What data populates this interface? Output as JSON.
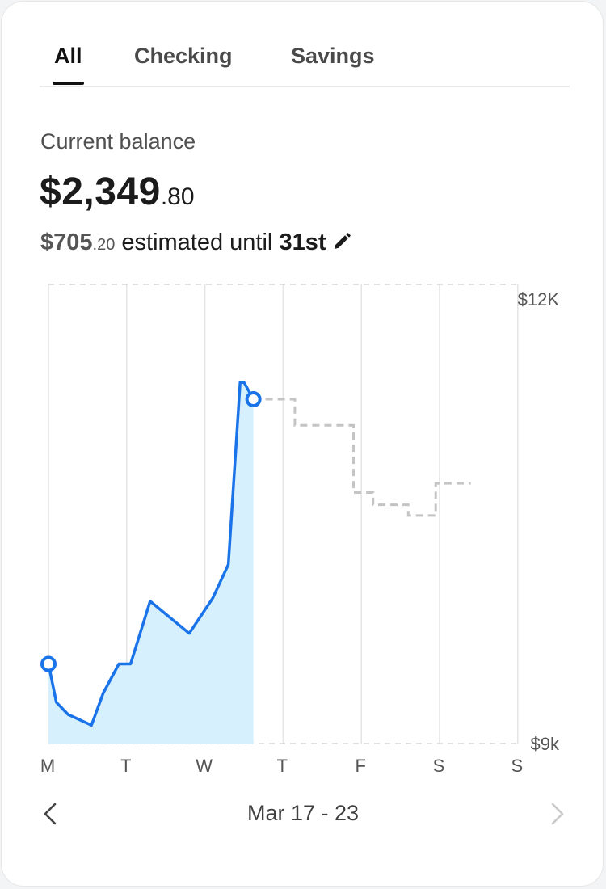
{
  "tabs": [
    {
      "label": "All",
      "active": true
    },
    {
      "label": "Checking",
      "active": false
    },
    {
      "label": "Savings",
      "active": false
    }
  ],
  "balance": {
    "label": "Current balance",
    "whole": "$2,349",
    "cents": ".80"
  },
  "estimate": {
    "whole": "$705",
    "cents": ".20",
    "text": " estimated until ",
    "day": "31st",
    "edit_icon": "pencil-icon"
  },
  "week_nav": {
    "label": "Mar 17 - 23",
    "prev_icon": "chevron-left-icon",
    "next_icon": "chevron-right-icon",
    "next_enabled": false
  },
  "colors": {
    "actual_line": "#1a73e8",
    "actual_fill": "#d6f0fd",
    "projection_line": "#c4c4c4",
    "grid": "#e4e4e4"
  },
  "chart_data": {
    "type": "area",
    "x_categories": [
      "M",
      "T",
      "W",
      "T",
      "F",
      "S",
      "S"
    ],
    "y_tick_labels": [
      "$12K",
      "$9k"
    ],
    "ylim": [
      9000,
      12000
    ],
    "grid": true,
    "actual": {
      "x": [
        0,
        0.1,
        0.25,
        0.55,
        0.7,
        0.9,
        1.05,
        1.3,
        1.8,
        2.1,
        2.3,
        2.45,
        2.5,
        2.62
      ],
      "y": [
        9520,
        9270,
        9190,
        9120,
        9330,
        9520,
        9520,
        9930,
        9720,
        9950,
        10170,
        11360,
        11360,
        11250
      ]
    },
    "projection": {
      "x": [
        2.62,
        3.15,
        3.15,
        3.9,
        3.9,
        4.15,
        4.15,
        4.6,
        4.6,
        4.95,
        4.95,
        5.4
      ],
      "y": [
        11250,
        11250,
        11080,
        11080,
        10640,
        10640,
        10560,
        10560,
        10490,
        10490,
        10700,
        10700
      ]
    }
  }
}
